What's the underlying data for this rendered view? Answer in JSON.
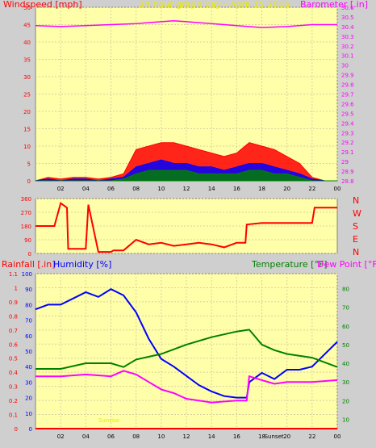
{
  "colors": {
    "background": "#cfcfcf",
    "plot_bg": "#ffffaa",
    "red": "#ff0000",
    "blue": "#0000ff",
    "green": "#008000",
    "magenta": "#ff00ff",
    "yellow_title": "#e8e800",
    "tan": "#d0d0a0"
  },
  "chart_data": [
    {
      "type": "line",
      "title": "24 hour graph day - April 15 2016",
      "ylabel_left": "Windspeed [mph]",
      "ylabel_right": "Barometer [.in]",
      "x_ticks": [
        "02",
        "04",
        "06",
        "08",
        "10",
        "12",
        "14",
        "16",
        "18",
        "20",
        "22",
        "00"
      ],
      "x_range": [
        0,
        24
      ],
      "ylim_left": [
        0,
        50
      ],
      "y_ticks_left": [
        0,
        5,
        10,
        15,
        20,
        25,
        30,
        35,
        40,
        45,
        50
      ],
      "ylim_right": [
        28.8,
        30.6
      ],
      "y_ticks_right": [
        "28.8",
        "28.9",
        "29",
        "29.1",
        "29.2",
        "29.3",
        "29.4",
        "29.5",
        "29.6",
        "29.7",
        "29.8",
        "29.9",
        "30",
        "30.1",
        "30.2",
        "30.3",
        "30.4",
        "30.5",
        "30.6"
      ],
      "series": [
        {
          "key": "barometer",
          "axis": "right",
          "color": "#ff00ff",
          "x": [
            0,
            2,
            4,
            6,
            8,
            10,
            11,
            12,
            14,
            16,
            18,
            20,
            22,
            24
          ],
          "y": [
            30.41,
            30.4,
            30.41,
            30.42,
            30.43,
            30.45,
            30.46,
            30.45,
            30.43,
            30.41,
            30.39,
            30.4,
            30.42,
            30.42
          ]
        },
        {
          "key": "gust",
          "axis": "left",
          "color": "#ff0000",
          "style": "bars",
          "x": [
            0,
            1,
            2,
            3,
            4,
            5,
            6,
            7,
            8,
            9,
            10,
            11,
            12,
            13,
            14,
            15,
            16,
            17,
            18,
            19,
            20,
            21,
            22,
            23,
            24
          ],
          "y": [
            0,
            1,
            0.5,
            1,
            1,
            0.5,
            1,
            2,
            9,
            10,
            11,
            11,
            10,
            9,
            8,
            7,
            8,
            11,
            10,
            9,
            7,
            5,
            1,
            0,
            0
          ]
        },
        {
          "key": "wind",
          "axis": "left",
          "color": "#0000ff",
          "style": "bars",
          "x": [
            0,
            1,
            2,
            3,
            4,
            5,
            6,
            7,
            8,
            9,
            10,
            11,
            12,
            13,
            14,
            15,
            16,
            17,
            18,
            19,
            20,
            21,
            22,
            23,
            24
          ],
          "y": [
            0,
            0.5,
            0,
            0.5,
            0.5,
            0,
            0.5,
            1,
            4,
            5,
            6,
            5,
            5,
            4,
            4,
            3,
            4,
            5,
            5,
            4,
            3,
            2,
            0.5,
            0,
            0
          ]
        },
        {
          "key": "wind_avg",
          "axis": "left",
          "color": "#008000",
          "style": "bars",
          "x": [
            0,
            1,
            2,
            3,
            4,
            5,
            6,
            7,
            8,
            9,
            10,
            11,
            12,
            13,
            14,
            15,
            16,
            17,
            18,
            19,
            20,
            21,
            22,
            23,
            24
          ],
          "y": [
            0,
            0,
            0,
            0,
            0,
            0,
            0,
            0.5,
            2,
            3,
            3,
            3,
            3,
            2,
            2,
            2,
            2,
            3,
            3,
            2,
            2,
            1,
            0,
            0,
            0
          ]
        }
      ]
    },
    {
      "type": "line",
      "xlabel": "",
      "ylabel": "",
      "y_ticks": [
        0,
        90,
        180,
        270,
        360
      ],
      "ylim": [
        0,
        360
      ],
      "compass_labels": [
        "N",
        "W",
        "S",
        "E",
        "N"
      ],
      "series": [
        {
          "key": "wind_direction",
          "color": "#ff0000",
          "x": [
            0,
            1.5,
            2.0,
            2.5,
            2.6,
            3.0,
            4.0,
            4.2,
            5.0,
            6.0,
            6.2,
            7.0,
            8.0,
            9.0,
            10.0,
            11.0,
            12.0,
            13.0,
            14.0,
            15.0,
            16.0,
            16.7,
            16.8,
            18.0,
            20.0,
            21.0,
            22.0,
            22.2,
            24.0
          ],
          "y": [
            180,
            180,
            330,
            300,
            30,
            30,
            30,
            320,
            10,
            10,
            20,
            20,
            90,
            60,
            70,
            50,
            60,
            70,
            60,
            40,
            70,
            70,
            190,
            200,
            200,
            200,
            200,
            300,
            300
          ]
        }
      ]
    },
    {
      "type": "line",
      "ylabel_left": "Rainfall [.in]",
      "ylabel_humidity": "Humidity [%]",
      "ylabel_right_temp": "Temperature [°F]",
      "ylabel_right_dew": "Dew Point [°F]",
      "x_ticks": [
        "02",
        "04",
        "06",
        "08",
        "10",
        "12",
        "14",
        "16",
        "18",
        "20",
        "22",
        "00"
      ],
      "x_range": [
        0,
        24
      ],
      "ylim_left": [
        0,
        1.1
      ],
      "y_ticks_left": [
        "0",
        "0.1",
        "0.2",
        "0.3",
        "0.4",
        "0.5",
        "0.6",
        "0.7",
        "0.8",
        "0.9",
        "1",
        "1.1"
      ],
      "ylim_right": [
        5,
        88
      ],
      "y_ticks_right": [
        10,
        20,
        30,
        40,
        50,
        60,
        70,
        80
      ],
      "ylim_humidity": [
        0,
        100
      ],
      "y_ticks_humidity": [
        0,
        10,
        20,
        30,
        40,
        50,
        60,
        70,
        80,
        90,
        100
      ],
      "annotations": [
        "Sunrise",
        "Sunset"
      ],
      "series": [
        {
          "key": "humidity",
          "axis": "humidity",
          "color": "#0000ff",
          "x": [
            0,
            1,
            2,
            3,
            4,
            5,
            6,
            7,
            8,
            9,
            10,
            11,
            12,
            13,
            14,
            15,
            16,
            16.8,
            17,
            18,
            19,
            20,
            21,
            22,
            23,
            24
          ],
          "y": [
            77,
            80,
            80,
            84,
            88,
            85,
            90,
            86,
            75,
            58,
            45,
            40,
            34,
            28,
            24,
            21,
            20,
            20,
            30,
            36,
            32,
            38,
            38,
            40,
            48,
            56
          ]
        },
        {
          "key": "temperature",
          "axis": "right",
          "color": "#008000",
          "x": [
            0,
            2,
            4,
            6,
            7,
            8,
            10,
            12,
            14,
            16,
            17,
            18,
            19,
            20,
            22,
            24
          ],
          "y": [
            37,
            37,
            40,
            40,
            38,
            42,
            45,
            50,
            54,
            57,
            58,
            50,
            47,
            45,
            43,
            38
          ]
        },
        {
          "key": "dew_point",
          "axis": "right",
          "color": "#ff00ff",
          "x": [
            0,
            2,
            4,
            6,
            7,
            8,
            9,
            10,
            11,
            12,
            14,
            16,
            16.8,
            17,
            18,
            19,
            20,
            22,
            24
          ],
          "y": [
            33,
            33,
            34,
            33,
            36,
            34,
            30,
            26,
            24,
            21,
            19,
            20,
            20,
            33,
            31,
            29,
            30,
            30,
            31
          ]
        },
        {
          "key": "rainfall",
          "axis": "left",
          "color": "#ff0000",
          "x": [
            0,
            24
          ],
          "y": [
            0,
            0
          ]
        }
      ]
    }
  ]
}
